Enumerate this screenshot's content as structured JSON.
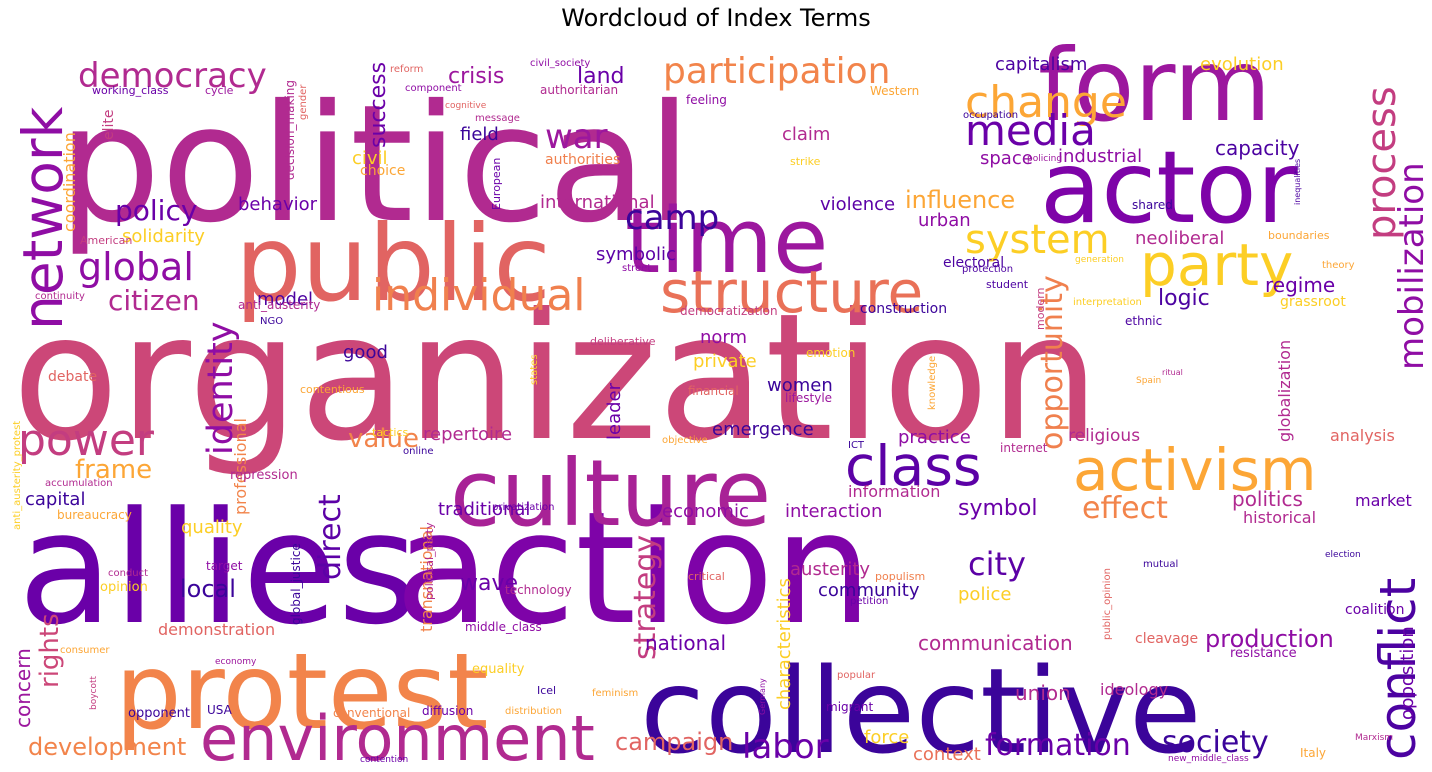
{
  "title": "Wordcloud of Index Terms",
  "palette": {
    "dark_indigo": "#2c0594",
    "violet": "#6a00a8",
    "purple": "#8f0da4",
    "magenta": "#b12a90",
    "rose": "#cc4778",
    "coral": "#e16462",
    "orange": "#f2844b",
    "amber": "#fca636",
    "yellow": "#fcce25"
  },
  "words": [
    {
      "text": "organization",
      "color": "#cc4778"
    },
    {
      "text": "political",
      "color": "#b12a90"
    },
    {
      "text": "allies",
      "color": "#6a00a8"
    },
    {
      "text": "action",
      "color": "#7e03a8"
    },
    {
      "text": "collective",
      "color": "#3b049a"
    },
    {
      "text": "public",
      "color": "#e16462"
    },
    {
      "text": "protest",
      "color": "#f2844b"
    },
    {
      "text": "culture",
      "color": "#a82296"
    },
    {
      "text": "form",
      "color": "#9c179e"
    },
    {
      "text": "actor",
      "color": "#7e03a8"
    },
    {
      "text": "time",
      "color": "#9c179e"
    },
    {
      "text": "network",
      "color": "#8f0da4"
    },
    {
      "text": "structure",
      "color": "#e97158"
    },
    {
      "text": "activism",
      "color": "#fca636"
    },
    {
      "text": "environment",
      "color": "#b12a90"
    },
    {
      "text": "party",
      "color": "#fcce25"
    },
    {
      "text": "class",
      "color": "#5c01a6"
    },
    {
      "text": "conflict",
      "color": "#4c02a1"
    },
    {
      "text": "individual",
      "color": "#f0804e"
    },
    {
      "text": "change",
      "color": "#fca636"
    },
    {
      "text": "media",
      "color": "#6a00a8"
    },
    {
      "text": "process",
      "color": "#c33d80"
    },
    {
      "text": "mobilization",
      "color": "#8f0da4"
    },
    {
      "text": "participation",
      "color": "#f2844b"
    },
    {
      "text": "democracy",
      "color": "#b12a90"
    },
    {
      "text": "power",
      "color": "#c33d80"
    },
    {
      "text": "global",
      "color": "#8f0da4"
    },
    {
      "text": "camp",
      "color": "#3b049a"
    },
    {
      "text": "war",
      "color": "#9c179e"
    },
    {
      "text": "system",
      "color": "#fcce25"
    },
    {
      "text": "identity",
      "color": "#8f0da4"
    },
    {
      "text": "opportunity",
      "color": "#f0804e"
    },
    {
      "text": "citizen",
      "color": "#b12a90"
    },
    {
      "text": "policy",
      "color": "#6a00a8"
    },
    {
      "text": "labor",
      "color": "#6a00a8"
    },
    {
      "text": "society",
      "color": "#3b049a"
    },
    {
      "text": "formation",
      "color": "#6a00a8"
    },
    {
      "text": "city",
      "color": "#5c01a6"
    },
    {
      "text": "strategy",
      "color": "#c33d80"
    },
    {
      "text": "direct",
      "color": "#5c01a6"
    },
    {
      "text": "effect",
      "color": "#f2844b"
    },
    {
      "text": "frame",
      "color": "#fca636"
    },
    {
      "text": "value",
      "color": "#f2844b"
    },
    {
      "text": "rights",
      "color": "#cc4778"
    },
    {
      "text": "development",
      "color": "#f2844b"
    },
    {
      "text": "campaign",
      "color": "#e16462"
    },
    {
      "text": "production",
      "color": "#8f0da4"
    },
    {
      "text": "influence",
      "color": "#fca636"
    },
    {
      "text": "success",
      "color": "#6a00a8"
    },
    {
      "text": "crisis",
      "color": "#9c179e"
    },
    {
      "text": "land",
      "color": "#6a00a8"
    },
    {
      "text": "capitalism",
      "color": "#4c02a1"
    },
    {
      "text": "evolution",
      "color": "#fcce25"
    },
    {
      "text": "field",
      "color": "#3b049a"
    },
    {
      "text": "claim",
      "color": "#b12a90"
    },
    {
      "text": "civil",
      "color": "#fcce25"
    },
    {
      "text": "space",
      "color": "#8f0da4"
    },
    {
      "text": "industrial",
      "color": "#8f0da4"
    },
    {
      "text": "capacity",
      "color": "#4c02a1"
    },
    {
      "text": "behavior",
      "color": "#6a00a8"
    },
    {
      "text": "international",
      "color": "#b12a90"
    },
    {
      "text": "violence",
      "color": "#5c01a6"
    },
    {
      "text": "urban",
      "color": "#8f0da4"
    },
    {
      "text": "neoliberal",
      "color": "#b12a90"
    },
    {
      "text": "solidarity",
      "color": "#fcce25"
    },
    {
      "text": "symbolic",
      "color": "#5c01a6"
    },
    {
      "text": "electoral",
      "color": "#4c02a1"
    },
    {
      "text": "model",
      "color": "#4c02a1"
    },
    {
      "text": "logic",
      "color": "#4c02a1"
    },
    {
      "text": "regime",
      "color": "#6a00a8"
    },
    {
      "text": "grassroot",
      "color": "#fcce25"
    },
    {
      "text": "construction",
      "color": "#3b049a"
    },
    {
      "text": "norm",
      "color": "#8f0da4"
    },
    {
      "text": "good",
      "color": "#3b049a"
    },
    {
      "text": "private",
      "color": "#fcce25"
    },
    {
      "text": "women",
      "color": "#3b049a"
    },
    {
      "text": "emergence",
      "color": "#3b049a"
    },
    {
      "text": "repertoire",
      "color": "#b12a90"
    },
    {
      "text": "practice",
      "color": "#8f0da4"
    },
    {
      "text": "religious",
      "color": "#b12a90"
    },
    {
      "text": "analysis",
      "color": "#e16462"
    },
    {
      "text": "information",
      "color": "#b12a90"
    },
    {
      "text": "traditional",
      "color": "#6a00a8"
    },
    {
      "text": "economic",
      "color": "#8f0da4"
    },
    {
      "text": "interaction",
      "color": "#8f0da4"
    },
    {
      "text": "symbol",
      "color": "#6a00a8"
    },
    {
      "text": "politics",
      "color": "#b12a90"
    },
    {
      "text": "market",
      "color": "#6a00a8"
    },
    {
      "text": "historical",
      "color": "#b12a90"
    },
    {
      "text": "capital",
      "color": "#3b049a"
    },
    {
      "text": "quality",
      "color": "#fcce25"
    },
    {
      "text": "local",
      "color": "#3b049a"
    },
    {
      "text": "wave",
      "color": "#6a00a8"
    },
    {
      "text": "austerity",
      "color": "#b12a90"
    },
    {
      "text": "community",
      "color": "#3b049a"
    },
    {
      "text": "police",
      "color": "#fcce25"
    },
    {
      "text": "national",
      "color": "#6a00a8"
    },
    {
      "text": "communication",
      "color": "#b12a90"
    },
    {
      "text": "demonstration",
      "color": "#e16462"
    },
    {
      "text": "union",
      "color": "#b12a90"
    },
    {
      "text": "ideology",
      "color": "#b12a90"
    },
    {
      "text": "force",
      "color": "#fcce25"
    },
    {
      "text": "context",
      "color": "#e97158"
    },
    {
      "text": "concern",
      "color": "#9c179e"
    },
    {
      "text": "professional",
      "color": "#f2844b"
    },
    {
      "text": "leader",
      "color": "#6a00a8"
    },
    {
      "text": "transnational",
      "color": "#f2844b"
    },
    {
      "text": "characteristics",
      "color": "#fcce25"
    },
    {
      "text": "opposition",
      "color": "#6a00a8"
    },
    {
      "text": "globalization",
      "color": "#b12a90"
    },
    {
      "text": "coalition",
      "color": "#6a00a8"
    },
    {
      "text": "resistance",
      "color": "#8f0da4"
    },
    {
      "text": "cleavage",
      "color": "#e16462"
    },
    {
      "text": "debate",
      "color": "#e16462"
    },
    {
      "text": "coordination",
      "color": "#fca636"
    },
    {
      "text": "elite",
      "color": "#c33d80"
    },
    {
      "text": "decision_making",
      "color": "#b12a90"
    },
    {
      "text": "choice",
      "color": "#fca636"
    },
    {
      "text": "authorities",
      "color": "#f0804e"
    },
    {
      "text": "authoritarian",
      "color": "#b12a90"
    },
    {
      "text": "feeling",
      "color": "#8f0da4"
    },
    {
      "text": "Western",
      "color": "#fca636"
    },
    {
      "text": "working_class",
      "color": "#6a00a8"
    },
    {
      "text": "cycle",
      "color": "#9c179e"
    },
    {
      "text": "reform",
      "color": "#e16462"
    },
    {
      "text": "civil_society",
      "color": "#8f0da4"
    },
    {
      "text": "component",
      "color": "#8f0da4"
    },
    {
      "text": "message",
      "color": "#b12a90"
    },
    {
      "text": "cognitive",
      "color": "#e16462"
    },
    {
      "text": "gender",
      "color": "#e16462"
    },
    {
      "text": "occupation",
      "color": "#3b049a"
    },
    {
      "text": "strike",
      "color": "#fcce25"
    },
    {
      "text": "policing",
      "color": "#9c179e"
    },
    {
      "text": "shared",
      "color": "#3b049a"
    },
    {
      "text": "inequalities",
      "color": "#4c02a1"
    },
    {
      "text": "boundaries",
      "color": "#fca636"
    },
    {
      "text": "theory",
      "color": "#fca636"
    },
    {
      "text": "generation",
      "color": "#fcce25"
    },
    {
      "text": "protection",
      "color": "#4c02a1"
    },
    {
      "text": "student",
      "color": "#4c02a1"
    },
    {
      "text": "interpretation",
      "color": "#fcce25"
    },
    {
      "text": "modern",
      "color": "#c33d80"
    },
    {
      "text": "ethnic",
      "color": "#4c02a1"
    },
    {
      "text": "street",
      "color": "#8f0da4"
    },
    {
      "text": "European",
      "color": "#6a00a8"
    },
    {
      "text": "American",
      "color": "#c33d80"
    },
    {
      "text": "continuity",
      "color": "#b12a90"
    },
    {
      "text": "anti_austerity",
      "color": "#b12a90"
    },
    {
      "text": "NGO",
      "color": "#3b049a"
    },
    {
      "text": "deliberative",
      "color": "#c33d80"
    },
    {
      "text": "democratization",
      "color": "#c33d80"
    },
    {
      "text": "emotion",
      "color": "#fcce25"
    },
    {
      "text": "financial",
      "color": "#e16462"
    },
    {
      "text": "lifestyle",
      "color": "#9c179e"
    },
    {
      "text": "knowledge",
      "color": "#fca636"
    },
    {
      "text": "ritual",
      "color": "#b12a90"
    },
    {
      "text": "Spain",
      "color": "#fca636"
    },
    {
      "text": "contentious",
      "color": "#fca636"
    },
    {
      "text": "states",
      "color": "#fcce25"
    },
    {
      "text": "anti_austerity_protest",
      "color": "#fcce25"
    },
    {
      "text": "tactics",
      "color": "#fcce25"
    },
    {
      "text": "objective",
      "color": "#fca636"
    },
    {
      "text": "ICT",
      "color": "#3b049a"
    },
    {
      "text": "internet",
      "color": "#b12a90"
    },
    {
      "text": "online",
      "color": "#3b049a"
    },
    {
      "text": "repression",
      "color": "#b12a90"
    },
    {
      "text": "accumulation",
      "color": "#b12a90"
    },
    {
      "text": "bureaucracy",
      "color": "#fca636"
    },
    {
      "text": "privatization",
      "color": "#6a00a8"
    },
    {
      "text": "political_party",
      "color": "#b12a90"
    },
    {
      "text": "global_justice",
      "color": "#3b049a"
    },
    {
      "text": "target",
      "color": "#8f0da4"
    },
    {
      "text": "conduct",
      "color": "#b12a90"
    },
    {
      "text": "opinion",
      "color": "#fcce25"
    },
    {
      "text": "technology",
      "color": "#b12a90"
    },
    {
      "text": "critical",
      "color": "#e16462"
    },
    {
      "text": "populism",
      "color": "#f0804e"
    },
    {
      "text": "public_opinion",
      "color": "#e16462"
    },
    {
      "text": "mutual",
      "color": "#3b049a"
    },
    {
      "text": "election",
      "color": "#3b049a"
    },
    {
      "text": "petition",
      "color": "#6a00a8"
    },
    {
      "text": "middle_class",
      "color": "#8f0da4"
    },
    {
      "text": "consumer",
      "color": "#fca636"
    },
    {
      "text": "economy",
      "color": "#9c179e"
    },
    {
      "text": "equality",
      "color": "#fcce25"
    },
    {
      "text": "Icel",
      "color": "#3b049a"
    },
    {
      "text": "feminism",
      "color": "#fca636"
    },
    {
      "text": "popular",
      "color": "#e16462"
    },
    {
      "text": "boycott",
      "color": "#c33d80"
    },
    {
      "text": "opponent",
      "color": "#3b049a"
    },
    {
      "text": "USA",
      "color": "#3b049a"
    },
    {
      "text": "conventional",
      "color": "#f2844b"
    },
    {
      "text": "diffusion",
      "color": "#6a00a8"
    },
    {
      "text": "distribution",
      "color": "#fca636"
    },
    {
      "text": "Germany",
      "color": "#8f0da4"
    },
    {
      "text": "migrant",
      "color": "#6a00a8"
    },
    {
      "text": "Italy",
      "color": "#fca636"
    },
    {
      "text": "Marxism",
      "color": "#b12a90"
    },
    {
      "text": "contention",
      "color": "#6a00a8"
    },
    {
      "text": "new_middle_class",
      "color": "#8f0da4"
    }
  ]
}
